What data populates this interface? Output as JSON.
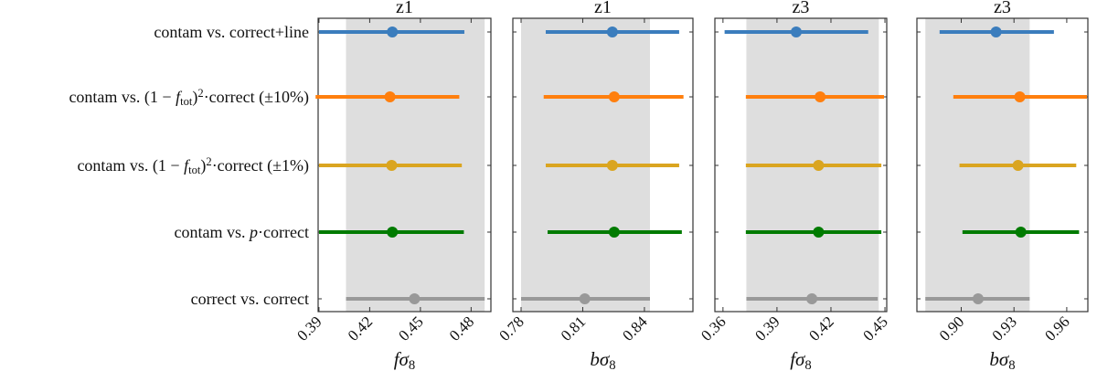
{
  "chart_data": {
    "type": "forest",
    "rows": [
      {
        "label": [
          {
            "t": "contam vs. correct+line"
          }
        ],
        "color": "#3b7dbd"
      },
      {
        "label": [
          {
            "t": "contam vs. (1 − "
          },
          {
            "t": "f",
            "i": 1
          },
          {
            "t": "tot",
            "sub": 1
          },
          {
            "t": ")"
          },
          {
            "t": "2",
            "sup": 1
          },
          {
            "t": "·correct (±10%)"
          }
        ],
        "color": "#ff7f0e"
      },
      {
        "label": [
          {
            "t": "contam vs. (1 − "
          },
          {
            "t": "f",
            "i": 1
          },
          {
            "t": "tot",
            "sub": 1
          },
          {
            "t": ")"
          },
          {
            "t": "2",
            "sup": 1
          },
          {
            "t": "·correct (±1%)"
          }
        ],
        "color": "#daa520"
      },
      {
        "label": [
          {
            "t": "contam vs. "
          },
          {
            "t": "p",
            "i": 1
          },
          {
            "t": "·correct"
          }
        ],
        "color": "#007b00"
      },
      {
        "label": [
          {
            "t": "correct vs. correct"
          }
        ],
        "color": "#999999"
      }
    ],
    "panels": [
      {
        "title": "z1",
        "xlabel": [
          {
            "t": "fσ",
            "i": 1
          },
          {
            "t": "8",
            "sub": 1
          }
        ],
        "xlim": [
          0.3895,
          0.4917
        ],
        "ticks": [
          "0.39",
          "0.42",
          "0.45",
          "0.48"
        ],
        "band": [
          0.406,
          0.488
        ],
        "values": [
          {
            "center": 0.4334,
            "lo": 0.39,
            "hi": 0.476
          },
          {
            "center": 0.432,
            "lo": 0.388,
            "hi": 0.473
          },
          {
            "center": 0.433,
            "lo": 0.39,
            "hi": 0.4745
          },
          {
            "center": 0.4334,
            "lo": 0.39,
            "hi": 0.4757
          },
          {
            "center": 0.4465,
            "lo": 0.406,
            "hi": 0.488
          }
        ]
      },
      {
        "title": "z1",
        "xlabel": [
          {
            "t": "bσ",
            "i": 1
          },
          {
            "t": "8",
            "sub": 1
          }
        ],
        "xlim": [
          0.776,
          0.8636
        ],
        "ticks": [
          "0.78",
          "0.81",
          "0.84"
        ],
        "band": [
          0.78,
          0.8427
        ],
        "values": [
          {
            "center": 0.8244,
            "lo": 0.792,
            "hi": 0.8569
          },
          {
            "center": 0.8253,
            "lo": 0.791,
            "hi": 0.859
          },
          {
            "center": 0.8244,
            "lo": 0.792,
            "hi": 0.8569
          },
          {
            "center": 0.8253,
            "lo": 0.7929,
            "hi": 0.8582
          },
          {
            "center": 0.811,
            "lo": 0.78,
            "hi": 0.8427
          }
        ]
      },
      {
        "title": "z3",
        "xlabel": [
          {
            "t": "fσ",
            "i": 1
          },
          {
            "t": "8",
            "sub": 1
          }
        ],
        "xlim": [
          0.3555,
          0.451
        ],
        "ticks": [
          "0.36",
          "0.39",
          "0.42",
          "0.45"
        ],
        "band": [
          0.373,
          0.4466
        ],
        "values": [
          {
            "center": 0.4007,
            "lo": 0.3609,
            "hi": 0.4407
          },
          {
            "center": 0.414,
            "lo": 0.3727,
            "hi": 0.4495
          },
          {
            "center": 0.4131,
            "lo": 0.3727,
            "hi": 0.448
          },
          {
            "center": 0.4131,
            "lo": 0.3727,
            "hi": 0.448
          },
          {
            "center": 0.4094,
            "lo": 0.373,
            "hi": 0.446
          }
        ]
      },
      {
        "title": "z3",
        "xlabel": [
          {
            "t": "bσ",
            "i": 1
          },
          {
            "t": "8",
            "sub": 1
          }
        ],
        "xlim": [
          0.8748,
          0.972
        ],
        "ticks": [
          "0.90",
          "0.93",
          "0.96"
        ],
        "band": [
          0.8796,
          0.9389
        ],
        "values": [
          {
            "center": 0.9198,
            "lo": 0.8877,
            "hi": 0.9527
          },
          {
            "center": 0.9333,
            "lo": 0.8955,
            "hi": 0.9715
          },
          {
            "center": 0.9323,
            "lo": 0.899,
            "hi": 0.9654
          },
          {
            "center": 0.9339,
            "lo": 0.9007,
            "hi": 0.967
          },
          {
            "center": 0.9096,
            "lo": 0.8796,
            "hi": 0.9389
          }
        ]
      }
    ],
    "band_color": "#dedede",
    "grid": false
  }
}
